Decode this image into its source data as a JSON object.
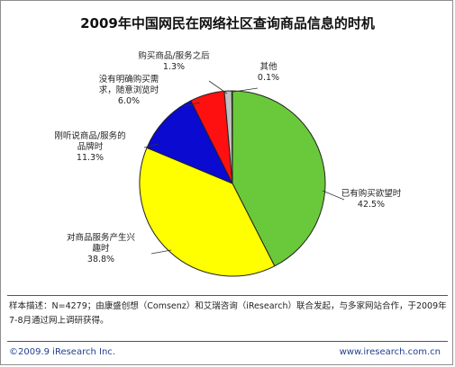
{
  "chart_data": {
    "type": "pie",
    "title": "2009年中国网民在网络社区查询商品信息的时机",
    "slices": [
      {
        "label_lines": [
          "已有购买欲望时"
        ],
        "value": 42.5,
        "value_text": "42.5%",
        "color": "#6ac93a"
      },
      {
        "label_lines": [
          "对商品服务产生兴",
          "趣时"
        ],
        "value": 38.8,
        "value_text": "38.8%",
        "color": "#ffff00"
      },
      {
        "label_lines": [
          "刚听说商品/服务的",
          "品牌时"
        ],
        "value": 11.3,
        "value_text": "11.3%",
        "color": "#0a0ad0"
      },
      {
        "label_lines": [
          "没有明确购买需",
          "求，随意浏览时"
        ],
        "value": 6.0,
        "value_text": "6.0%",
        "color": "#ff1010"
      },
      {
        "label_lines": [
          "购买商品/服务之后"
        ],
        "value": 1.3,
        "value_text": "1.3%",
        "color": "#c0c0c0"
      },
      {
        "label_lines": [
          "其他"
        ],
        "value": 0.1,
        "value_text": "0.1%",
        "color": "#444444"
      }
    ]
  },
  "note": "样本描述：N=4279；由康盛创想（Comsenz）和艾瑞咨询（iResearch）联合发起，与多家网站合作，于2009年7-8月通过网上调研获得。",
  "footer": {
    "left": "©2009.9 iResearch Inc.",
    "right": "www.iresearch.com.cn"
  }
}
